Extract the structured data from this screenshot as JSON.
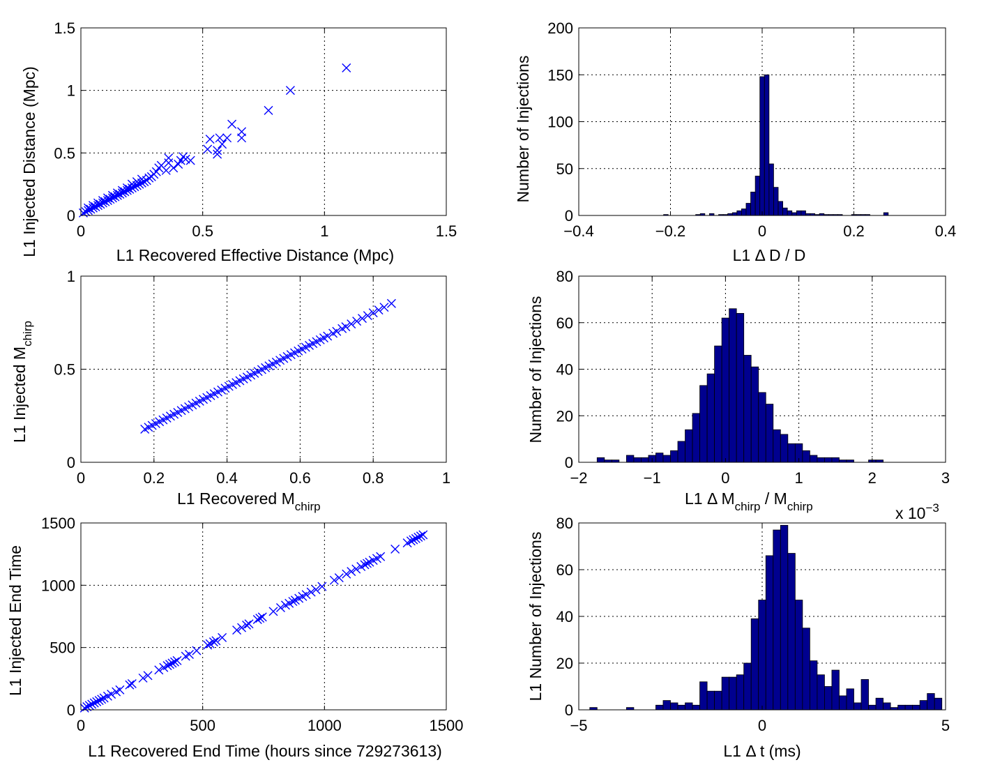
{
  "chart_data": [
    {
      "type": "scatter",
      "title": "",
      "xlabel": "L1 Recovered Effective Distance (Mpc)",
      "ylabel": "L1 Injected Distance (Mpc)",
      "xlim": [
        0,
        1.5
      ],
      "ylim": [
        0,
        1.5
      ],
      "xticks": [
        "0",
        "0.5",
        "1",
        "1.5"
      ],
      "yticks": [
        "0",
        "0.5",
        "1",
        "1.5"
      ],
      "grid": true,
      "marker": "x",
      "color": "#0000ff",
      "points": [
        [
          0.01,
          0.02
        ],
        [
          0.02,
          0.03
        ],
        [
          0.03,
          0.04
        ],
        [
          0.04,
          0.05
        ],
        [
          0.05,
          0.06
        ],
        [
          0.06,
          0.07
        ],
        [
          0.07,
          0.08
        ],
        [
          0.08,
          0.09
        ],
        [
          0.09,
          0.1
        ],
        [
          0.1,
          0.11
        ],
        [
          0.11,
          0.12
        ],
        [
          0.12,
          0.13
        ],
        [
          0.13,
          0.14
        ],
        [
          0.14,
          0.15
        ],
        [
          0.15,
          0.16
        ],
        [
          0.16,
          0.17
        ],
        [
          0.17,
          0.18
        ],
        [
          0.18,
          0.19
        ],
        [
          0.19,
          0.2
        ],
        [
          0.2,
          0.21
        ],
        [
          0.21,
          0.22
        ],
        [
          0.22,
          0.23
        ],
        [
          0.23,
          0.24
        ],
        [
          0.24,
          0.25
        ],
        [
          0.25,
          0.26
        ],
        [
          0.26,
          0.27
        ],
        [
          0.27,
          0.28
        ],
        [
          0.03,
          0.06
        ],
        [
          0.05,
          0.08
        ],
        [
          0.07,
          0.1
        ],
        [
          0.09,
          0.12
        ],
        [
          0.11,
          0.14
        ],
        [
          0.13,
          0.16
        ],
        [
          0.15,
          0.18
        ],
        [
          0.17,
          0.2
        ],
        [
          0.19,
          0.22
        ],
        [
          0.21,
          0.25
        ],
        [
          0.23,
          0.27
        ],
        [
          0.25,
          0.29
        ],
        [
          0.28,
          0.3
        ],
        [
          0.29,
          0.31
        ],
        [
          0.3,
          0.33
        ],
        [
          0.31,
          0.35
        ],
        [
          0.32,
          0.38
        ],
        [
          0.33,
          0.4
        ],
        [
          0.35,
          0.36
        ],
        [
          0.36,
          0.42
        ],
        [
          0.36,
          0.46
        ],
        [
          0.38,
          0.38
        ],
        [
          0.4,
          0.41
        ],
        [
          0.41,
          0.44
        ],
        [
          0.42,
          0.47
        ],
        [
          0.43,
          0.45
        ],
        [
          0.45,
          0.44
        ],
        [
          0.52,
          0.53
        ],
        [
          0.53,
          0.61
        ],
        [
          0.56,
          0.49
        ],
        [
          0.56,
          0.52
        ],
        [
          0.57,
          0.62
        ],
        [
          0.58,
          0.57
        ],
        [
          0.6,
          0.62
        ],
        [
          0.62,
          0.73
        ],
        [
          0.66,
          0.62
        ],
        [
          0.66,
          0.67
        ],
        [
          0.77,
          0.84
        ],
        [
          0.86,
          1.0
        ],
        [
          1.09,
          1.18
        ]
      ]
    },
    {
      "type": "bar",
      "title": "",
      "xlabel": "L1 Δ D / D",
      "ylabel": "Number of Injections",
      "xlim": [
        -0.4,
        0.4
      ],
      "ylim": [
        0,
        200
      ],
      "xticks": [
        "−0.4",
        "−0.2",
        "0",
        "0.2",
        "0.4"
      ],
      "yticks": [
        "0",
        "50",
        "100",
        "150",
        "200"
      ],
      "grid": true,
      "bin_width": 0.01,
      "bin_centers": [
        -0.21,
        -0.14,
        -0.13,
        -0.11,
        -0.09,
        -0.08,
        -0.07,
        -0.06,
        -0.05,
        -0.04,
        -0.03,
        -0.02,
        -0.01,
        0.0,
        0.01,
        0.02,
        0.03,
        0.04,
        0.05,
        0.06,
        0.07,
        0.08,
        0.09,
        0.1,
        0.11,
        0.12,
        0.13,
        0.14,
        0.15,
        0.16,
        0.17,
        0.2,
        0.21,
        0.22,
        0.23,
        0.27
      ],
      "values": [
        1,
        1,
        2,
        2,
        1,
        1,
        2,
        3,
        5,
        7,
        13,
        25,
        42,
        148,
        150,
        55,
        30,
        15,
        8,
        5,
        3,
        5,
        5,
        2,
        2,
        1,
        2,
        1,
        1,
        1,
        1,
        1,
        1,
        1,
        1,
        3
      ]
    },
    {
      "type": "scatter",
      "title": "",
      "xlabel": "L1 Recovered M",
      "xlabel_sub": "chirp",
      "ylabel": "L1 Injected M",
      "ylabel_sub": "chirp",
      "xlim": [
        0,
        1
      ],
      "ylim": [
        0,
        1
      ],
      "xticks": [
        "0",
        "0.2",
        "0.4",
        "0.6",
        "0.8",
        "1"
      ],
      "yticks": [
        "0",
        "0.5",
        "1"
      ],
      "grid": true,
      "marker": "x",
      "color": "#0000ff",
      "points": [
        [
          0.175,
          0.178
        ],
        [
          0.185,
          0.188
        ],
        [
          0.195,
          0.198
        ],
        [
          0.205,
          0.208
        ],
        [
          0.215,
          0.218
        ],
        [
          0.225,
          0.228
        ],
        [
          0.235,
          0.238
        ],
        [
          0.245,
          0.248
        ],
        [
          0.255,
          0.258
        ],
        [
          0.265,
          0.268
        ],
        [
          0.275,
          0.278
        ],
        [
          0.285,
          0.288
        ],
        [
          0.295,
          0.298
        ],
        [
          0.305,
          0.308
        ],
        [
          0.315,
          0.318
        ],
        [
          0.325,
          0.328
        ],
        [
          0.335,
          0.338
        ],
        [
          0.345,
          0.348
        ],
        [
          0.355,
          0.358
        ],
        [
          0.365,
          0.368
        ],
        [
          0.375,
          0.378
        ],
        [
          0.385,
          0.388
        ],
        [
          0.395,
          0.398
        ],
        [
          0.405,
          0.408
        ],
        [
          0.415,
          0.418
        ],
        [
          0.425,
          0.428
        ],
        [
          0.435,
          0.438
        ],
        [
          0.445,
          0.448
        ],
        [
          0.455,
          0.458
        ],
        [
          0.465,
          0.468
        ],
        [
          0.475,
          0.478
        ],
        [
          0.485,
          0.488
        ],
        [
          0.495,
          0.498
        ],
        [
          0.505,
          0.508
        ],
        [
          0.515,
          0.518
        ],
        [
          0.525,
          0.528
        ],
        [
          0.535,
          0.538
        ],
        [
          0.545,
          0.548
        ],
        [
          0.555,
          0.558
        ],
        [
          0.565,
          0.568
        ],
        [
          0.575,
          0.578
        ],
        [
          0.585,
          0.588
        ],
        [
          0.595,
          0.598
        ],
        [
          0.605,
          0.608
        ],
        [
          0.615,
          0.618
        ],
        [
          0.625,
          0.628
        ],
        [
          0.635,
          0.638
        ],
        [
          0.645,
          0.648
        ],
        [
          0.655,
          0.658
        ],
        [
          0.665,
          0.668
        ],
        [
          0.675,
          0.678
        ],
        [
          0.69,
          0.693
        ],
        [
          0.7,
          0.703
        ],
        [
          0.715,
          0.718
        ],
        [
          0.725,
          0.728
        ],
        [
          0.74,
          0.743
        ],
        [
          0.755,
          0.758
        ],
        [
          0.77,
          0.773
        ],
        [
          0.785,
          0.788
        ],
        [
          0.8,
          0.803
        ],
        [
          0.815,
          0.818
        ],
        [
          0.83,
          0.833
        ],
        [
          0.85,
          0.853
        ]
      ]
    },
    {
      "type": "bar",
      "title": "",
      "xlabel": "L1 Δ M",
      "xlabel_sub": "chirp",
      "xlabel_mid": " / M",
      "xlabel_sub2": "chirp",
      "ylabel": "Number of Injections",
      "xlim": [
        -2,
        3
      ],
      "ylim": [
        0,
        80
      ],
      "xticks": [
        "−2",
        "−1",
        "0",
        "1",
        "2",
        "3"
      ],
      "yticks": [
        "0",
        "20",
        "40",
        "60",
        "80"
      ],
      "x_multiplier": "x 10",
      "x_multiplier_exp": "−3",
      "grid": true,
      "bin_width": 0.1,
      "bin_centers": [
        -1.7,
        -1.6,
        -1.5,
        -1.4,
        -1.3,
        -1.2,
        -1.1,
        -1.0,
        -0.9,
        -0.8,
        -0.7,
        -0.6,
        -0.5,
        -0.4,
        -0.3,
        -0.2,
        -0.1,
        0.0,
        0.1,
        0.2,
        0.3,
        0.4,
        0.5,
        0.6,
        0.7,
        0.8,
        0.9,
        1.0,
        1.1,
        1.2,
        1.3,
        1.4,
        1.5,
        1.6,
        1.7,
        1.8,
        2.0,
        2.1
      ],
      "values": [
        2,
        1,
        1,
        0,
        3,
        2,
        2,
        3,
        4,
        3,
        5,
        9,
        14,
        21,
        33,
        38,
        50,
        62,
        66,
        64,
        46,
        41,
        30,
        25,
        14,
        12,
        8,
        8,
        5,
        3,
        2,
        2,
        2,
        1,
        1,
        0,
        1,
        1
      ]
    },
    {
      "type": "scatter",
      "title": "",
      "xlabel": "L1 Recovered End Time (hours since 729273613)",
      "ylabel": "L1 Injected End Time",
      "xlim": [
        0,
        1500
      ],
      "ylim": [
        0,
        1500
      ],
      "xticks": [
        "0",
        "500",
        "1000",
        "1500"
      ],
      "yticks": [
        "0",
        "500",
        "1000",
        "1500"
      ],
      "grid": true,
      "marker": "x",
      "color": "#0000ff",
      "points": [
        [
          15,
          15
        ],
        [
          25,
          25
        ],
        [
          35,
          35
        ],
        [
          45,
          45
        ],
        [
          55,
          55
        ],
        [
          65,
          65
        ],
        [
          75,
          75
        ],
        [
          85,
          85
        ],
        [
          95,
          95
        ],
        [
          110,
          110
        ],
        [
          125,
          125
        ],
        [
          145,
          145
        ],
        [
          160,
          160
        ],
        [
          200,
          200
        ],
        [
          210,
          210
        ],
        [
          255,
          255
        ],
        [
          275,
          275
        ],
        [
          320,
          320
        ],
        [
          340,
          340
        ],
        [
          355,
          355
        ],
        [
          365,
          365
        ],
        [
          375,
          375
        ],
        [
          385,
          385
        ],
        [
          395,
          395
        ],
        [
          430,
          430
        ],
        [
          445,
          445
        ],
        [
          475,
          475
        ],
        [
          520,
          520
        ],
        [
          530,
          530
        ],
        [
          545,
          545
        ],
        [
          555,
          555
        ],
        [
          580,
          580
        ],
        [
          640,
          640
        ],
        [
          660,
          660
        ],
        [
          680,
          680
        ],
        [
          690,
          690
        ],
        [
          725,
          725
        ],
        [
          735,
          735
        ],
        [
          745,
          745
        ],
        [
          790,
          790
        ],
        [
          820,
          820
        ],
        [
          840,
          840
        ],
        [
          855,
          855
        ],
        [
          870,
          870
        ],
        [
          880,
          880
        ],
        [
          895,
          895
        ],
        [
          910,
          910
        ],
        [
          925,
          925
        ],
        [
          945,
          945
        ],
        [
          965,
          965
        ],
        [
          990,
          990
        ],
        [
          1040,
          1040
        ],
        [
          1060,
          1060
        ],
        [
          1090,
          1090
        ],
        [
          1110,
          1110
        ],
        [
          1130,
          1130
        ],
        [
          1150,
          1150
        ],
        [
          1165,
          1165
        ],
        [
          1175,
          1175
        ],
        [
          1185,
          1185
        ],
        [
          1200,
          1200
        ],
        [
          1215,
          1215
        ],
        [
          1230,
          1230
        ],
        [
          1290,
          1290
        ],
        [
          1340,
          1340
        ],
        [
          1355,
          1355
        ],
        [
          1365,
          1365
        ],
        [
          1375,
          1375
        ],
        [
          1385,
          1385
        ],
        [
          1395,
          1395
        ],
        [
          1405,
          1405
        ]
      ]
    },
    {
      "type": "bar",
      "title": "",
      "xlabel": "L1 Δ t (ms)",
      "ylabel": "L1 Number of Injections",
      "xlim": [
        -5,
        5
      ],
      "ylim": [
        0,
        80
      ],
      "xticks": [
        "−5",
        "0",
        "5"
      ],
      "yticks": [
        "0",
        "20",
        "40",
        "60",
        "80"
      ],
      "grid": true,
      "bin_width": 0.2,
      "bin_centers": [
        -4.6,
        -3.6,
        -2.8,
        -2.6,
        -2.4,
        -2.2,
        -2.0,
        -1.8,
        -1.6,
        -1.4,
        -1.2,
        -1.0,
        -0.8,
        -0.6,
        -0.4,
        -0.2,
        0.0,
        0.2,
        0.4,
        0.6,
        0.8,
        1.0,
        1.2,
        1.4,
        1.6,
        1.8,
        2.0,
        2.2,
        2.4,
        2.6,
        2.8,
        3.0,
        3.2,
        3.4,
        3.6,
        3.8,
        4.0,
        4.2,
        4.4,
        4.6,
        4.8
      ],
      "values": [
        1,
        1,
        2,
        4,
        3,
        2,
        3,
        2,
        12,
        8,
        8,
        14,
        14,
        15,
        20,
        39,
        47,
        66,
        77,
        79,
        67,
        47,
        35,
        21,
        15,
        10,
        17,
        6,
        9,
        3,
        13,
        2,
        5,
        3,
        1,
        2,
        2,
        2,
        4,
        7,
        5
      ]
    }
  ]
}
